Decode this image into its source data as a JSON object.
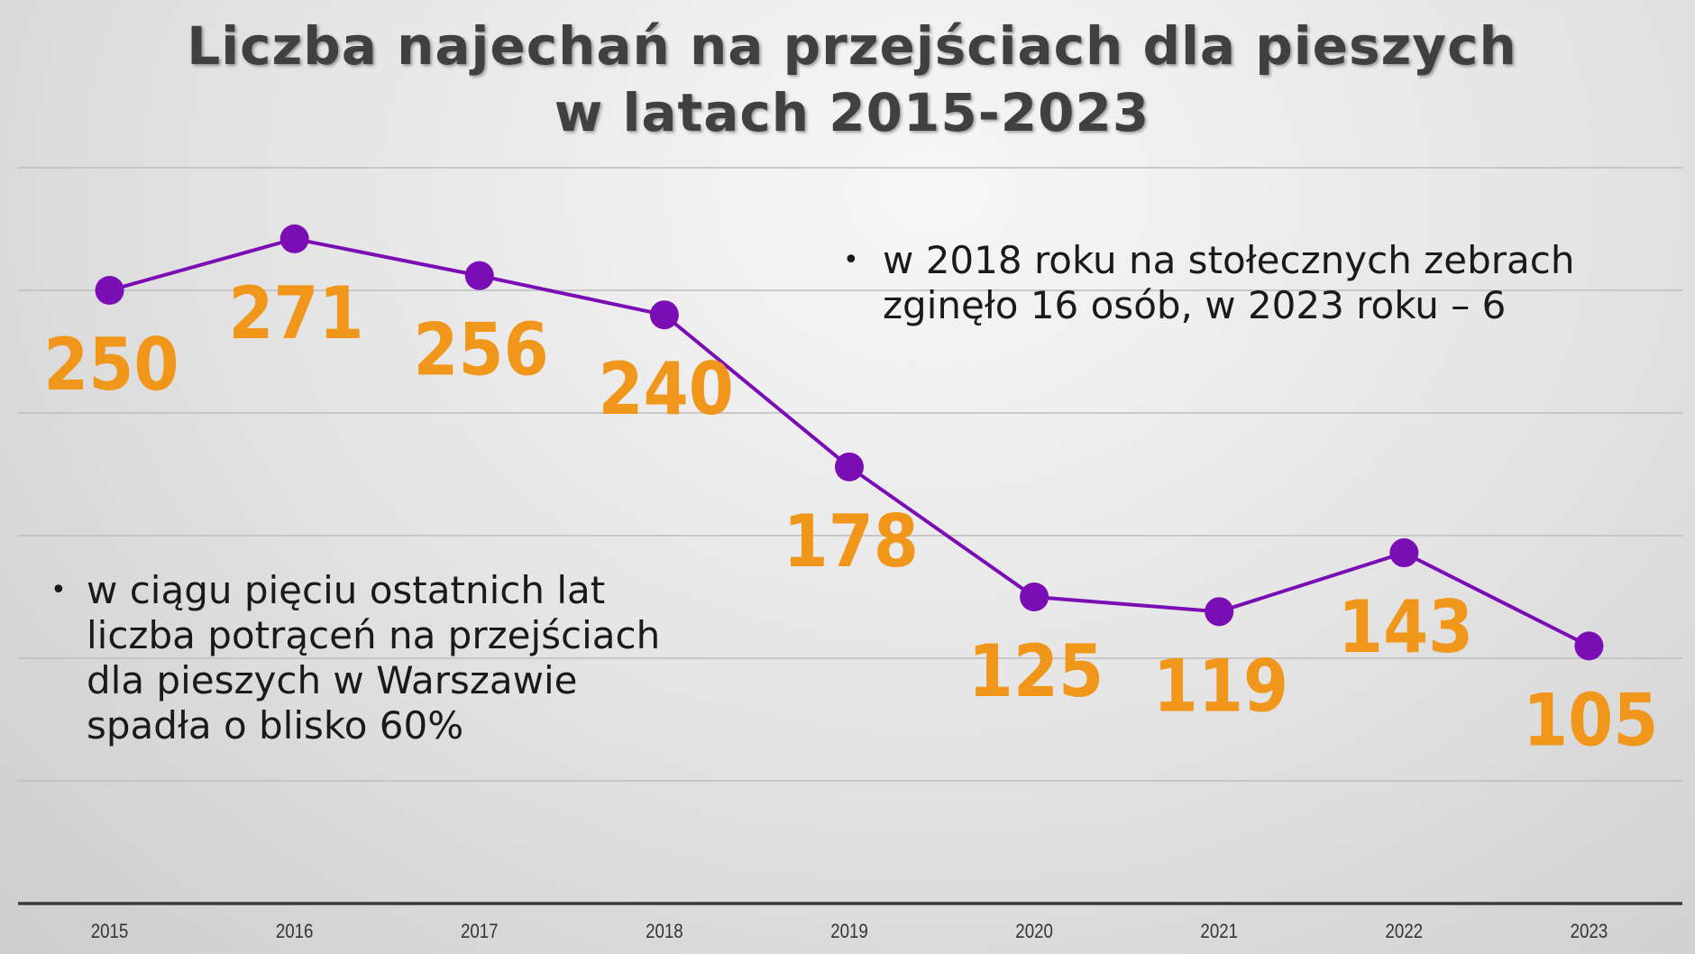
{
  "title": {
    "line1": "Liczba najechań na przejściach dla pieszych",
    "line2": "w latach 2015-2023"
  },
  "notes": {
    "right": [
      "w 2018 roku na stołecznych zebrach",
      "zginęło 16 osób, w 2023 roku – 6"
    ],
    "left": [
      "w ciągu pięciu ostatnich lat",
      "liczba potrąceń na przejściach",
      "dla pieszych w Warszawie",
      "spadła o blisko 60%"
    ]
  },
  "chart_data": {
    "type": "line",
    "title": "Liczba najechań na przejściach dla pieszych w latach 2015-2023",
    "categories": [
      "2015",
      "2016",
      "2017",
      "2018",
      "2019",
      "2020",
      "2021",
      "2022",
      "2023"
    ],
    "values": [
      250,
      271,
      256,
      240,
      178,
      125,
      119,
      143,
      105
    ],
    "ylim": [
      0,
      300
    ],
    "ygrid_step": 50,
    "grid": true,
    "y_tick_labels_shown": false,
    "line_color": "#7B0DB5",
    "label_color": "#F0961B"
  }
}
